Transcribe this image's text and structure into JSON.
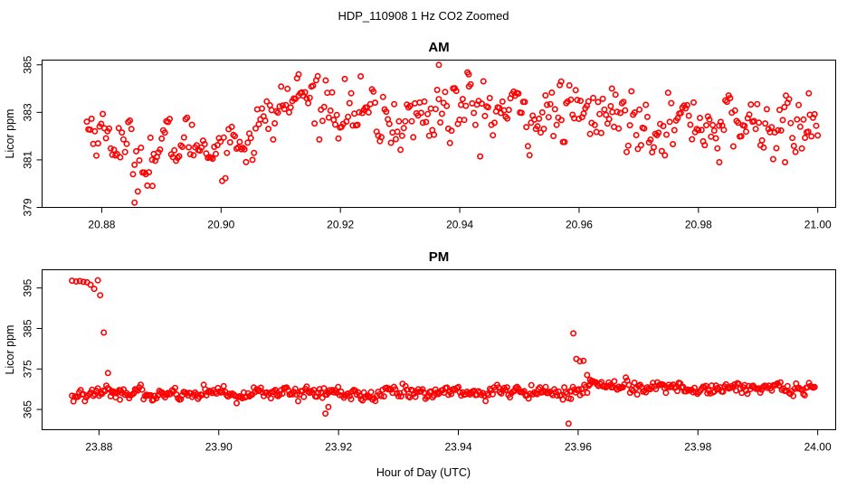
{
  "figure": {
    "title": "HDP_110908  1 Hz CO2 Zoomed",
    "xlabel": "Hour of Day (UTC)"
  },
  "colors": {
    "points": "#ff0000",
    "axes": "#000000",
    "background": "#ffffff"
  },
  "chart_data": [
    {
      "type": "scatter",
      "title": "AM",
      "ylabel": "Licor ppm",
      "xlim": [
        20.87,
        21.003
      ],
      "ylim": [
        379,
        385.2
      ],
      "x_ticks": [
        20.88,
        20.9,
        20.92,
        20.94,
        20.96,
        20.98,
        21.0
      ],
      "x_tick_labels": [
        "20.88",
        "20.90",
        "20.92",
        "20.94",
        "20.96",
        "20.98",
        "21.00"
      ],
      "y_ticks": [
        379,
        381,
        383,
        385
      ],
      "y_tick_labels": [
        "379",
        "381",
        "383",
        "385"
      ],
      "x_start": 20.8775,
      "x_end": 21.0,
      "profile": [
        [
          20.8775,
          382.5,
          0.5
        ],
        [
          20.882,
          381.9,
          0.5
        ],
        [
          20.886,
          381.1,
          0.6
        ],
        [
          20.89,
          381.4,
          0.6
        ],
        [
          20.894,
          381.8,
          0.5
        ],
        [
          20.898,
          381.6,
          0.5
        ],
        [
          20.902,
          381.7,
          0.6
        ],
        [
          20.906,
          382.2,
          0.6
        ],
        [
          20.91,
          383.2,
          0.5
        ],
        [
          20.913,
          383.7,
          0.5
        ],
        [
          20.918,
          383.4,
          0.6
        ],
        [
          20.924,
          382.9,
          0.6
        ],
        [
          20.93,
          382.5,
          0.6
        ],
        [
          20.936,
          383.1,
          0.7
        ],
        [
          20.942,
          383.1,
          0.7
        ],
        [
          20.948,
          383.0,
          0.6
        ],
        [
          20.955,
          382.8,
          0.6
        ],
        [
          20.962,
          382.9,
          0.6
        ],
        [
          20.97,
          382.7,
          0.6
        ],
        [
          20.978,
          382.6,
          0.6
        ],
        [
          20.986,
          382.5,
          0.6
        ],
        [
          20.994,
          382.4,
          0.6
        ],
        [
          21.0,
          382.3,
          0.5
        ]
      ],
      "notable_points": [
        [
          20.8855,
          379.2
        ],
        [
          20.8885,
          379.9
        ],
        [
          20.913,
          384.6
        ],
        [
          20.9365,
          385.0
        ],
        [
          20.9415,
          384.6
        ],
        [
          20.957,
          384.3
        ],
        [
          20.9655,
          384.0
        ],
        [
          20.9985,
          383.8
        ],
        [
          20.9835,
          380.9
        ],
        [
          20.9945,
          380.9
        ]
      ]
    },
    {
      "type": "scatter",
      "title": "PM",
      "ylabel": "Licor ppm",
      "xlim": [
        23.8705,
        24.003
      ],
      "ylim": [
        360,
        399.5
      ],
      "x_ticks": [
        23.88,
        23.9,
        23.92,
        23.94,
        23.96,
        23.98,
        24.0
      ],
      "x_tick_labels": [
        "23.88",
        "23.90",
        "23.92",
        "23.94",
        "23.96",
        "23.98",
        "24.00"
      ],
      "y_ticks": [
        365,
        375,
        385,
        395
      ],
      "y_tick_labels": [
        "365",
        "375",
        "385",
        "395"
      ],
      "x_start": 23.8755,
      "x_end": 23.9995,
      "profile": [
        [
          23.8755,
          369.0,
          0.8
        ],
        [
          23.9,
          369.1,
          0.8
        ],
        [
          23.94,
          369.0,
          0.8
        ],
        [
          23.9585,
          369.2,
          0.8
        ],
        [
          23.9625,
          371.5,
          0.8
        ],
        [
          23.97,
          370.6,
          0.8
        ],
        [
          23.985,
          370.2,
          0.8
        ],
        [
          23.9995,
          370.0,
          0.8
        ]
      ],
      "notable_points": [
        [
          23.8755,
          396.8
        ],
        [
          23.8762,
          396.6
        ],
        [
          23.8768,
          396.7
        ],
        [
          23.8774,
          396.5
        ],
        [
          23.878,
          396.4
        ],
        [
          23.8786,
          395.8
        ],
        [
          23.8792,
          394.8
        ],
        [
          23.8798,
          396.9
        ],
        [
          23.8802,
          393.2
        ],
        [
          23.8808,
          384.0
        ],
        [
          23.8815,
          374.0
        ],
        [
          23.8822,
          369.5
        ],
        [
          23.8828,
          368.0
        ],
        [
          23.8835,
          367.4
        ],
        [
          23.9178,
          364.0
        ],
        [
          23.9183,
          365.6
        ],
        [
          23.9584,
          361.5
        ],
        [
          23.9588,
          367.6
        ],
        [
          23.9592,
          383.8
        ],
        [
          23.9597,
          377.5
        ],
        [
          23.9603,
          376.9
        ],
        [
          23.9609,
          377.0
        ],
        [
          23.9615,
          373.5
        ],
        [
          23.962,
          372.3
        ]
      ]
    }
  ]
}
